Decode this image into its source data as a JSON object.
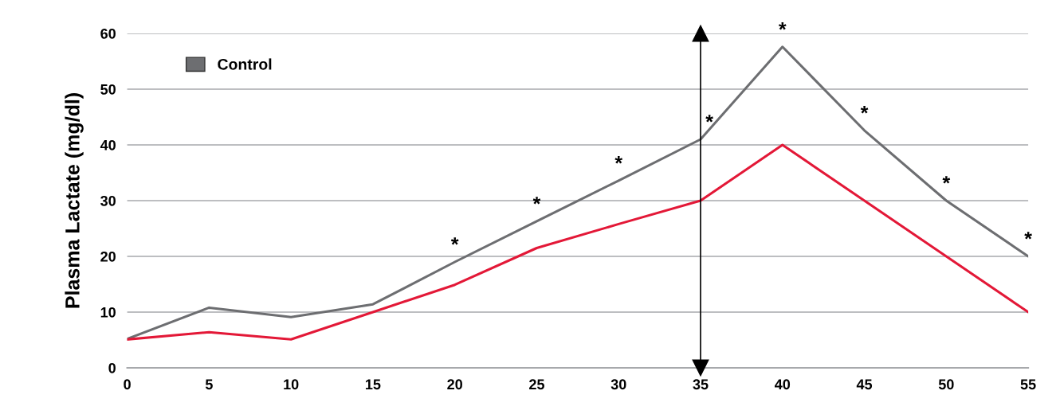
{
  "chart_data": {
    "type": "line",
    "ylabel": "Plasma Lactate (mg/dl)",
    "x": [
      0,
      5,
      10,
      15,
      20,
      25,
      30,
      35,
      40,
      45,
      50,
      55
    ],
    "series": [
      {
        "name": "Control",
        "color": "#6d6e71",
        "values": [
          5.2,
          10.8,
          9.1,
          11.4,
          19,
          26.3,
          33.6,
          41,
          57.6,
          42.6,
          30,
          20
        ]
      },
      {
        "color": "#e31837",
        "values": [
          5.1,
          6.4,
          5.1,
          10,
          14.9,
          21.5,
          25.8,
          30,
          40,
          30,
          20,
          10
        ]
      }
    ],
    "xlim": [
      0,
      55
    ],
    "xticks": [
      0,
      5,
      10,
      15,
      20,
      25,
      30,
      35,
      40,
      45,
      50,
      55
    ],
    "ylim": [
      0,
      60
    ],
    "yticks": [
      0,
      10,
      20,
      30,
      40,
      50,
      60
    ],
    "grid": "y",
    "legend": "top left",
    "marker": "none",
    "line_style": "solid",
    "ref_lines": [
      {
        "axis": "x",
        "value": 35,
        "color": "#000000"
      }
    ],
    "annotations": [
      {
        "text": "*",
        "x": 20,
        "y": 19
      },
      {
        "text": "*",
        "x": 25,
        "y": 26.3
      },
      {
        "text": "*",
        "x": 30,
        "y": 33.6
      },
      {
        "text": "*",
        "x": 35,
        "y": 41
      },
      {
        "text": "*",
        "x": 40,
        "y": 57.6
      },
      {
        "text": "*",
        "x": 45,
        "y": 42.6
      },
      {
        "text": "*",
        "x": 50,
        "y": 30
      },
      {
        "text": "*",
        "x": 55,
        "y": 20
      }
    ]
  }
}
